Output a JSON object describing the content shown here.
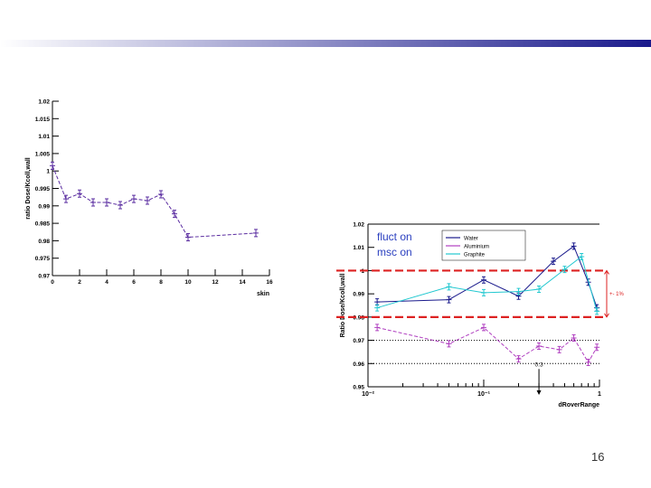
{
  "slide": {
    "page_number": "16"
  },
  "colors": {
    "bar_start": "#ffffff",
    "bar_end": "#1a1a8c",
    "purple": "#5a2ca0",
    "cyan": "#22c8d0",
    "red": "#dd2222",
    "magenta": "#b040c0"
  },
  "chart_data": [
    {
      "type": "line",
      "ylabel": "ratio Dose/Kcoll,wall",
      "xlabel": "skin",
      "xlim": [
        0,
        16
      ],
      "ylim": [
        0.97,
        1.02
      ],
      "xticks": [
        "0",
        "2",
        "4",
        "6",
        "8",
        "10",
        "12",
        "14",
        "16"
      ],
      "yticks": [
        "0.97",
        "0.975",
        "0.98",
        "0.985",
        "0.99",
        "0.995",
        "1",
        "1.005",
        "1.01",
        "1.015",
        "1.02"
      ],
      "grid": false,
      "series": [
        {
          "x": [
            0,
            1,
            2,
            3,
            4,
            5,
            6,
            7,
            8,
            9,
            10,
            15
          ],
          "y": [
            1.0015,
            0.992,
            0.9935,
            0.991,
            0.991,
            0.9902,
            0.992,
            0.9915,
            0.9933,
            0.9877,
            0.981,
            0.9822
          ]
        }
      ]
    },
    {
      "type": "line",
      "ylabel": "Ratio Dose/Kcoll,wall",
      "xlabel": "dRoverRange",
      "xscale": "log",
      "xlim": [
        0.01,
        1
      ],
      "ylim": [
        0.95,
        1.02
      ],
      "xticks": [
        "10⁻²",
        "10⁻¹",
        "1"
      ],
      "yticks": [
        "0.95",
        "0.96",
        "0.97",
        "0.98",
        "0.99",
        "1",
        "1.01",
        "1.02"
      ],
      "text_box": [
        "fluct on",
        "msc on"
      ],
      "legend": [
        "Water",
        "Aluminium",
        "Graphite"
      ],
      "band_label": "+- 1%",
      "marker_label": "0.3",
      "series": [
        {
          "x": [
            0.012,
            0.05,
            0.1,
            0.2,
            0.4,
            0.6,
            0.8,
            0.95
          ],
          "y": [
            0.9865,
            0.9875,
            0.996,
            0.989,
            1.004,
            1.0105,
            0.995,
            0.984
          ]
        },
        {
          "x": [
            0.012,
            0.05,
            0.1,
            0.2,
            0.3,
            0.5,
            0.7,
            0.95
          ],
          "y": [
            0.984,
            0.993,
            0.9905,
            0.991,
            0.992,
            1.0005,
            1.006,
            0.9825
          ]
        },
        {
          "x": [
            0.012,
            0.05,
            0.1,
            0.2,
            0.3,
            0.45,
            0.6,
            0.8,
            0.95
          ],
          "y": [
            0.9755,
            0.9685,
            0.9755,
            0.962,
            0.9675,
            0.966,
            0.971,
            0.9605,
            0.967
          ]
        }
      ]
    }
  ]
}
